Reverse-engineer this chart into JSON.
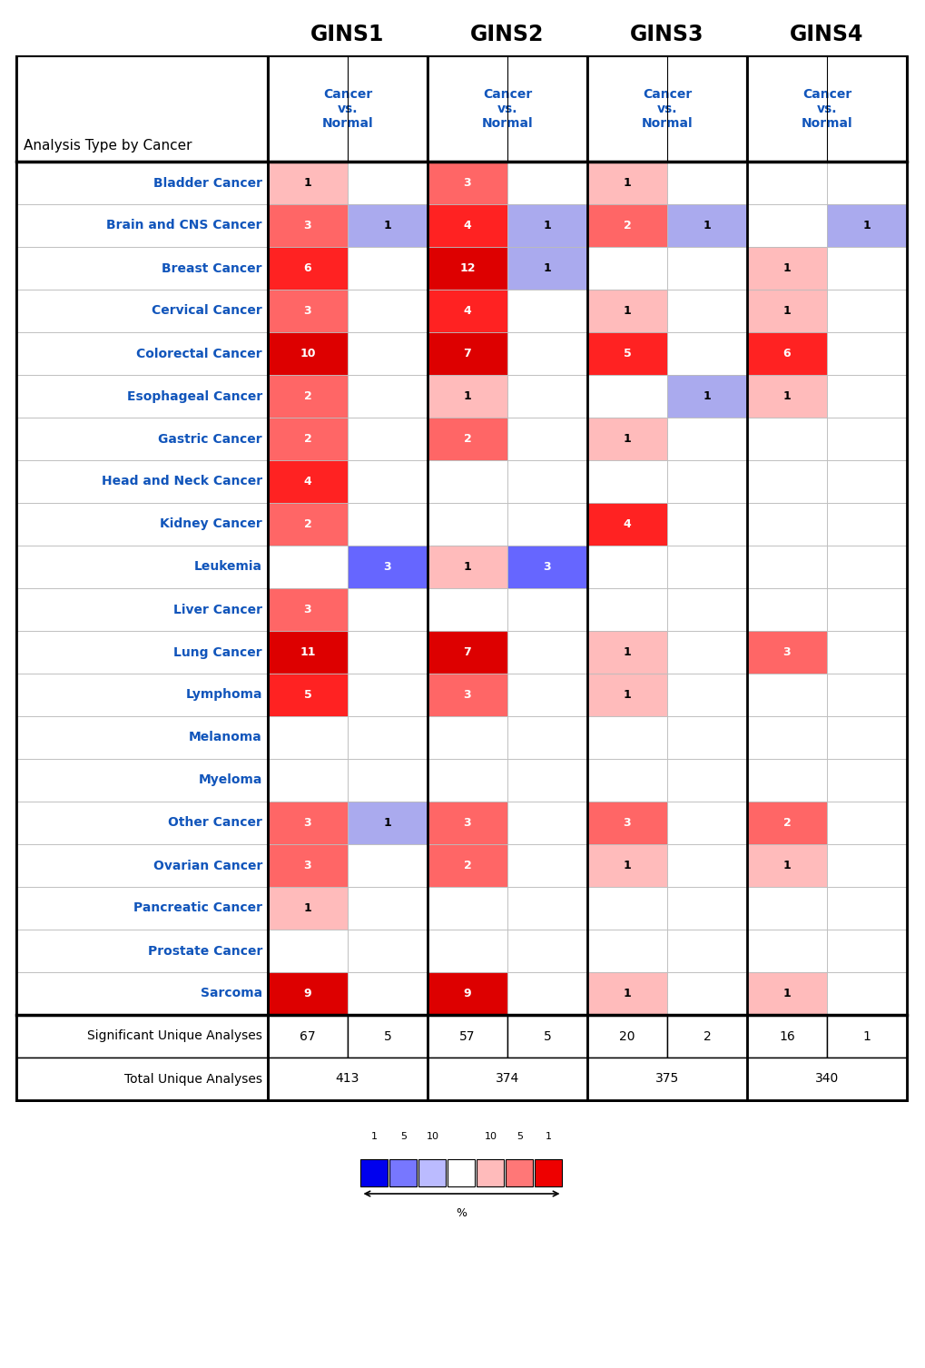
{
  "genes": [
    "GINS1",
    "GINS2",
    "GINS3",
    "GINS4"
  ],
  "cancers": [
    "Bladder Cancer",
    "Brain and CNS Cancer",
    "Breast Cancer",
    "Cervical Cancer",
    "Colorectal Cancer",
    "Esophageal Cancer",
    "Gastric Cancer",
    "Head and Neck Cancer",
    "Kidney Cancer",
    "Leukemia",
    "Liver Cancer",
    "Lung Cancer",
    "Lymphoma",
    "Melanoma",
    "Myeloma",
    "Other Cancer",
    "Ovarian Cancer",
    "Pancreatic Cancer",
    "Prostate Cancer",
    "Sarcoma"
  ],
  "up_data": [
    [
      1,
      3,
      6,
      3,
      10,
      2,
      2,
      4,
      2,
      0,
      3,
      11,
      5,
      0,
      0,
      3,
      3,
      1,
      0,
      9
    ],
    [
      3,
      4,
      12,
      4,
      7,
      1,
      2,
      0,
      0,
      1,
      0,
      7,
      3,
      0,
      0,
      3,
      2,
      0,
      0,
      9
    ],
    [
      1,
      2,
      0,
      1,
      5,
      0,
      1,
      0,
      4,
      0,
      0,
      1,
      1,
      0,
      0,
      3,
      1,
      0,
      0,
      1
    ],
    [
      0,
      0,
      1,
      1,
      6,
      1,
      0,
      0,
      0,
      0,
      0,
      3,
      0,
      0,
      0,
      2,
      1,
      0,
      0,
      1
    ]
  ],
  "down_data": [
    [
      0,
      1,
      0,
      0,
      0,
      0,
      0,
      0,
      0,
      3,
      0,
      0,
      0,
      0,
      0,
      1,
      0,
      0,
      0,
      0
    ],
    [
      0,
      1,
      1,
      0,
      0,
      0,
      0,
      0,
      0,
      3,
      0,
      0,
      0,
      0,
      0,
      0,
      0,
      0,
      0,
      0
    ],
    [
      0,
      1,
      0,
      0,
      0,
      1,
      0,
      0,
      0,
      0,
      0,
      0,
      0,
      0,
      0,
      0,
      0,
      0,
      0,
      0
    ],
    [
      0,
      1,
      0,
      0,
      0,
      0,
      0,
      0,
      0,
      0,
      0,
      0,
      0,
      0,
      0,
      0,
      0,
      0,
      0,
      0
    ]
  ],
  "sig_unique": [
    "67",
    "5",
    "57",
    "5",
    "20",
    "2",
    "16",
    "1"
  ],
  "total_unique": [
    "413",
    "374",
    "375",
    "340"
  ],
  "blue_color_1": "#0000EE",
  "blue_color_2": "#6666FF",
  "blue_color_3": "#AAAAEE",
  "red_color_1": "#FFBBBB",
  "red_color_2": "#FF7777",
  "red_color_3": "#EE0000",
  "header_blue": "#1155BB",
  "cancer_blue": "#1155BB",
  "grid_gray": "#BBBBBB",
  "legend_colors": [
    "#0000EE",
    "#7777FF",
    "#BBBBFF",
    "#FFFFFF",
    "#FFBBBB",
    "#FF7777",
    "#EE0000"
  ],
  "legend_labels": [
    "1",
    "5",
    "10",
    "10",
    "5",
    "1"
  ]
}
